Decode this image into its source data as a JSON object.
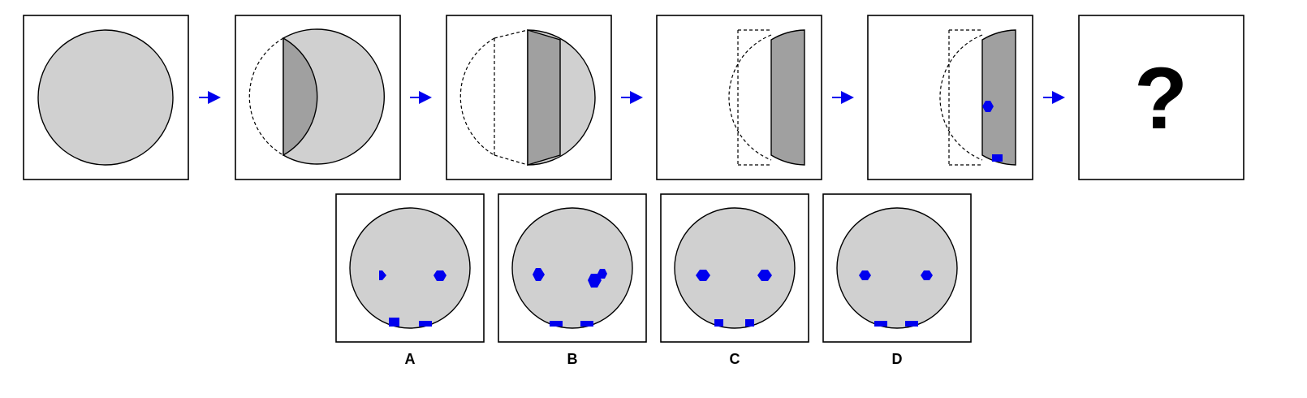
{
  "puzzle": {
    "question_mark": "?",
    "options": [
      {
        "label": "A"
      },
      {
        "label": "B"
      },
      {
        "label": "C"
      },
      {
        "label": "D"
      }
    ]
  },
  "colors": {
    "fill_light": "#d0d0d0",
    "fill_dark": "#a0a0a0",
    "marker": "#0000ee",
    "arrow": "#0000ee",
    "stroke": "#000000"
  }
}
